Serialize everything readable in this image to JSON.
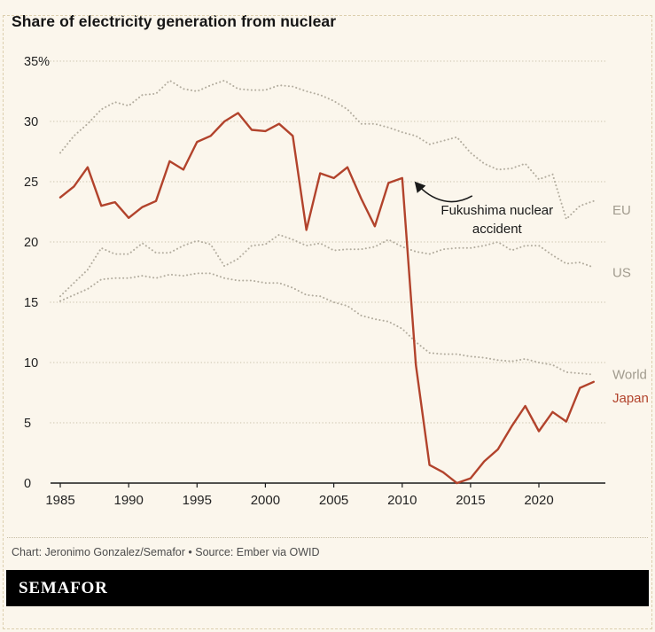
{
  "title": "Share of electricity generation from nuclear",
  "footer": {
    "credit": "Chart: Jeronimo Gonzalez/Semafor • Source: Ember via OWID"
  },
  "brand": {
    "name": "SEMAFOR"
  },
  "colors": {
    "background": "#fbf6ec",
    "japan_red": "#b2432c",
    "series_gray": "#b3ad9f",
    "grid": "#d6cfbc",
    "axis": "#1a1a1a"
  },
  "chart_data": {
    "type": "line",
    "title": "Share of electricity generation from nuclear",
    "xlabel": "",
    "ylabel": "",
    "ylim": [
      0,
      35
    ],
    "yticks": [
      0,
      5,
      10,
      15,
      20,
      25,
      30,
      35
    ],
    "ytick_labels": [
      "0",
      "5",
      "10",
      "15",
      "20",
      "25",
      "30",
      "35%"
    ],
    "xticks": [
      1985,
      1990,
      1995,
      2000,
      2005,
      2010,
      2015,
      2020
    ],
    "grid": "horizontal-dotted",
    "legend_position": "end-of-line-labels",
    "x": [
      1985,
      1986,
      1987,
      1988,
      1989,
      1990,
      1991,
      1992,
      1993,
      1994,
      1995,
      1996,
      1997,
      1998,
      1999,
      2000,
      2001,
      2002,
      2003,
      2004,
      2005,
      2006,
      2007,
      2008,
      2009,
      2010,
      2011,
      2012,
      2013,
      2014,
      2015,
      2016,
      2017,
      2018,
      2019,
      2020,
      2021,
      2022,
      2023,
      2024
    ],
    "series": [
      {
        "name": "EU",
        "style": "dotted",
        "color": "#b3ad9f",
        "label_color": "#a19b8e",
        "label_dy": 10,
        "values": [
          27.4,
          28.8,
          29.8,
          31.0,
          31.6,
          31.3,
          32.2,
          32.3,
          33.4,
          32.7,
          32.5,
          33.0,
          33.4,
          32.7,
          32.6,
          32.6,
          33.0,
          32.9,
          32.5,
          32.2,
          31.7,
          31.0,
          29.8,
          29.8,
          29.5,
          29.1,
          28.8,
          28.1,
          28.4,
          28.7,
          27.4,
          26.5,
          26.0,
          26.1,
          26.5,
          25.2,
          25.6,
          21.9,
          23.0,
          23.4
        ]
      },
      {
        "name": "US",
        "style": "dotted",
        "color": "#b3ad9f",
        "label_color": "#a19b8e",
        "label_dy": 6,
        "values": [
          15.5,
          16.6,
          17.7,
          19.5,
          19.0,
          19.0,
          19.9,
          19.1,
          19.1,
          19.7,
          20.1,
          19.8,
          18.0,
          18.6,
          19.7,
          19.8,
          20.6,
          20.2,
          19.7,
          19.9,
          19.3,
          19.4,
          19.4,
          19.6,
          20.2,
          19.6,
          19.2,
          19.0,
          19.4,
          19.5,
          19.5,
          19.7,
          20.0,
          19.3,
          19.7,
          19.7,
          18.9,
          18.2,
          18.3,
          17.9
        ]
      },
      {
        "name": "World",
        "style": "dotted",
        "color": "#b3ad9f",
        "label_color": "#a19b8e",
        "label_dy": 0,
        "values": [
          15.1,
          15.6,
          16.1,
          16.9,
          17.0,
          17.0,
          17.2,
          17.0,
          17.3,
          17.2,
          17.4,
          17.4,
          17.0,
          16.8,
          16.8,
          16.6,
          16.6,
          16.2,
          15.6,
          15.5,
          15.0,
          14.7,
          13.9,
          13.6,
          13.4,
          12.8,
          11.7,
          10.8,
          10.7,
          10.7,
          10.5,
          10.4,
          10.2,
          10.1,
          10.3,
          10.0,
          9.8,
          9.2,
          9.1,
          9.0
        ]
      },
      {
        "name": "Japan",
        "style": "solid",
        "color": "#b2432c",
        "label_color": "#b2432c",
        "label_dy": 18,
        "values": [
          23.7,
          24.6,
          26.2,
          23.0,
          23.3,
          22.0,
          22.9,
          23.4,
          26.7,
          26.0,
          28.3,
          28.8,
          30.0,
          30.7,
          29.3,
          29.2,
          29.8,
          28.8,
          21.0,
          25.7,
          25.3,
          26.2,
          23.6,
          21.3,
          24.9,
          25.3,
          9.8,
          1.5,
          0.9,
          0.0,
          0.4,
          1.8,
          2.8,
          4.7,
          6.4,
          4.3,
          5.9,
          5.1,
          7.9,
          8.4
        ]
      }
    ],
    "annotation": {
      "lines": [
        "Fukushima nuclear",
        "accident"
      ],
      "target": {
        "x": 2010,
        "y": 25.3
      }
    }
  }
}
